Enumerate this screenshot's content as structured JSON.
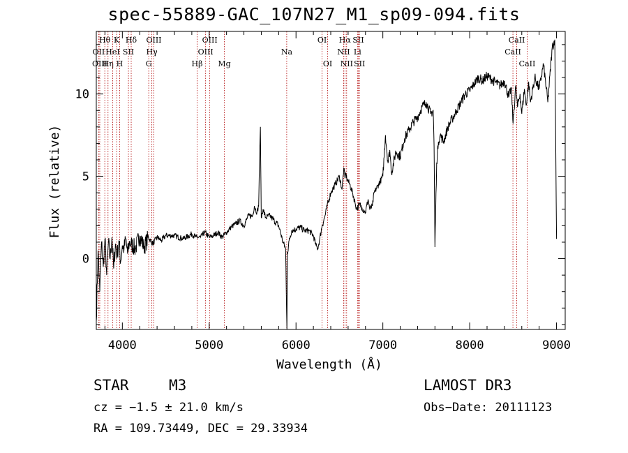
{
  "chart_data": {
    "type": "line",
    "title": "spec-55889-GAC_107N27_M1_sp09-094.fits",
    "xlabel": "Wavelength (Å)",
    "ylabel": "Flux (relative)",
    "xlim": [
      3700,
      9100
    ],
    "ylim": [
      -4.3,
      13.8
    ],
    "xticks": [
      {
        "value": 4000,
        "label": "4000"
      },
      {
        "value": 5000,
        "label": "5000"
      },
      {
        "value": 6000,
        "label": "6000"
      },
      {
        "value": 7000,
        "label": "7000"
      },
      {
        "value": 8000,
        "label": "8000"
      },
      {
        "value": 9000,
        "label": "9000"
      }
    ],
    "yticks": [
      {
        "value": 0,
        "label": "0"
      },
      {
        "value": 5,
        "label": "5"
      },
      {
        "value": 10,
        "label": "10"
      }
    ],
    "series": [
      {
        "name": "spectrum",
        "x": [
          3700,
          3720,
          3740,
          3760,
          3780,
          3800,
          3820,
          3840,
          3860,
          3880,
          3900,
          3920,
          3940,
          3960,
          3980,
          4000,
          4020,
          4040,
          4060,
          4080,
          4100,
          4150,
          4200,
          4250,
          4300,
          4350,
          4400,
          4450,
          4500,
          4600,
          4700,
          4800,
          4850,
          4900,
          4950,
          5000,
          5050,
          5100,
          5150,
          5200,
          5250,
          5300,
          5350,
          5400,
          5450,
          5500,
          5520,
          5550,
          5570,
          5580,
          5590,
          5600,
          5620,
          5650,
          5700,
          5750,
          5800,
          5850,
          5880,
          5895,
          5900,
          5910,
          5920,
          5950,
          6000,
          6050,
          6100,
          6150,
          6200,
          6230,
          6250,
          6270,
          6300,
          6330,
          6350,
          6400,
          6450,
          6500,
          6530,
          6550,
          6563,
          6570,
          6590,
          6620,
          6650,
          6680,
          6700,
          6730,
          6760,
          6800,
          6830,
          6850,
          6880,
          6900,
          6950,
          7000,
          7030,
          7060,
          7080,
          7100,
          7150,
          7200,
          7250,
          7300,
          7350,
          7400,
          7450,
          7500,
          7550,
          7580,
          7590,
          7600,
          7620,
          7640,
          7660,
          7700,
          7750,
          7800,
          7850,
          7900,
          7950,
          8000,
          8050,
          8100,
          8150,
          8200,
          8250,
          8300,
          8350,
          8400,
          8450,
          8480,
          8500,
          8530,
          8550,
          8580,
          8600,
          8630,
          8650,
          8680,
          8700,
          8750,
          8800,
          8850,
          8900,
          8950,
          8980,
          9000
        ],
        "y": [
          -3.8,
          0.5,
          -2.0,
          1.0,
          -0.5,
          1.2,
          -1.0,
          1.0,
          0.0,
          1.3,
          -0.6,
          0.9,
          0.2,
          1.1,
          -0.2,
          0.8,
          0.6,
          1.2,
          0.3,
          1.0,
          0.9,
          0.6,
          1.4,
          0.7,
          1.3,
          0.9,
          1.3,
          1.1,
          1.4,
          1.4,
          1.2,
          1.5,
          1.3,
          1.3,
          1.6,
          1.3,
          1.4,
          1.6,
          1.3,
          1.6,
          1.9,
          2.1,
          2.3,
          2.0,
          2.6,
          2.6,
          3.2,
          2.8,
          3.2,
          6.0,
          8.0,
          2.5,
          3.0,
          2.5,
          2.6,
          2.3,
          2.0,
          1.0,
          0.6,
          -4.3,
          0.4,
          0.5,
          1.1,
          1.7,
          1.8,
          1.9,
          1.7,
          1.7,
          1.4,
          0.8,
          0.6,
          1.1,
          2.0,
          2.5,
          3.0,
          4.0,
          4.5,
          5.0,
          4.2,
          5.5,
          4.9,
          5.2,
          4.8,
          4.5,
          4.0,
          3.4,
          3.0,
          3.3,
          3.1,
          2.8,
          3.6,
          3.0,
          3.2,
          4.0,
          4.5,
          5.0,
          7.5,
          5.8,
          6.6,
          5.2,
          6.5,
          6.2,
          7.3,
          7.8,
          8.3,
          8.6,
          9.2,
          9.5,
          8.8,
          9.0,
          6.8,
          0.7,
          5.8,
          7.1,
          7.5,
          7.1,
          8.0,
          8.5,
          9.0,
          9.5,
          10.0,
          10.2,
          10.6,
          11.0,
          10.8,
          11.1,
          10.9,
          10.7,
          10.5,
          10.8,
          9.8,
          10.4,
          8.2,
          10.5,
          9.2,
          10.0,
          8.8,
          10.3,
          9.3,
          10.7,
          9.5,
          11.0,
          10.3,
          11.8,
          9.5,
          12.8,
          13.3,
          1.2
        ]
      }
    ],
    "lines": [
      {
        "label": "Hθ",
        "x": 3798,
        "row": 1
      },
      {
        "label": "OII",
        "x": 3727,
        "row": 2
      },
      {
        "label": "OIII",
        "x": 3740,
        "row": 3
      },
      {
        "label": "Hη",
        "x": 3835,
        "row": 3
      },
      {
        "label": "K",
        "x": 3934,
        "row": 1
      },
      {
        "label": "HeI",
        "x": 3889,
        "row": 2
      },
      {
        "label": "SII",
        "x": 4070,
        "row": 2
      },
      {
        "label": "H",
        "x": 3969,
        "row": 3
      },
      {
        "label": "Hδ",
        "x": 4102,
        "row": 1
      },
      {
        "label": "OIII",
        "x": 4363,
        "row": 1
      },
      {
        "label": "Hγ",
        "x": 4340,
        "row": 2
      },
      {
        "label": "G",
        "x": 4304,
        "row": 3
      },
      {
        "label": "OIII",
        "x": 5007,
        "row": 1
      },
      {
        "label": "OIII",
        "x": 4959,
        "row": 2
      },
      {
        "label": "Hβ",
        "x": 4861,
        "row": 3
      },
      {
        "label": "Mg",
        "x": 5175,
        "row": 3
      },
      {
        "label": "Na",
        "x": 5893,
        "row": 2
      },
      {
        "label": "OI",
        "x": 6300,
        "row": 1
      },
      {
        "label": "OI",
        "x": 6364,
        "row": 3
      },
      {
        "label": "Hα",
        "x": 6563,
        "row": 1
      },
      {
        "label": "SII",
        "x": 6717,
        "row": 1
      },
      {
        "label": "NII",
        "x": 6548,
        "row": 2
      },
      {
        "label": "Li",
        "x": 6708,
        "row": 2
      },
      {
        "label": "NII",
        "x": 6583,
        "row": 3
      },
      {
        "label": "SII",
        "x": 6731,
        "row": 3
      },
      {
        "label": "CaII",
        "x": 8542,
        "row": 1
      },
      {
        "label": "CaII",
        "x": 8498,
        "row": 2
      },
      {
        "label": "CaII",
        "x": 8662,
        "row": 3
      }
    ]
  },
  "info": {
    "class": "STAR",
    "subclass": "M3",
    "survey": "LAMOST DR3",
    "cz": "cz = −1.5 ± 21.0 km/s",
    "obs_date": "Obs−Date: 20111123",
    "coords": "RA = 109.73449, DEC =  29.33934"
  }
}
